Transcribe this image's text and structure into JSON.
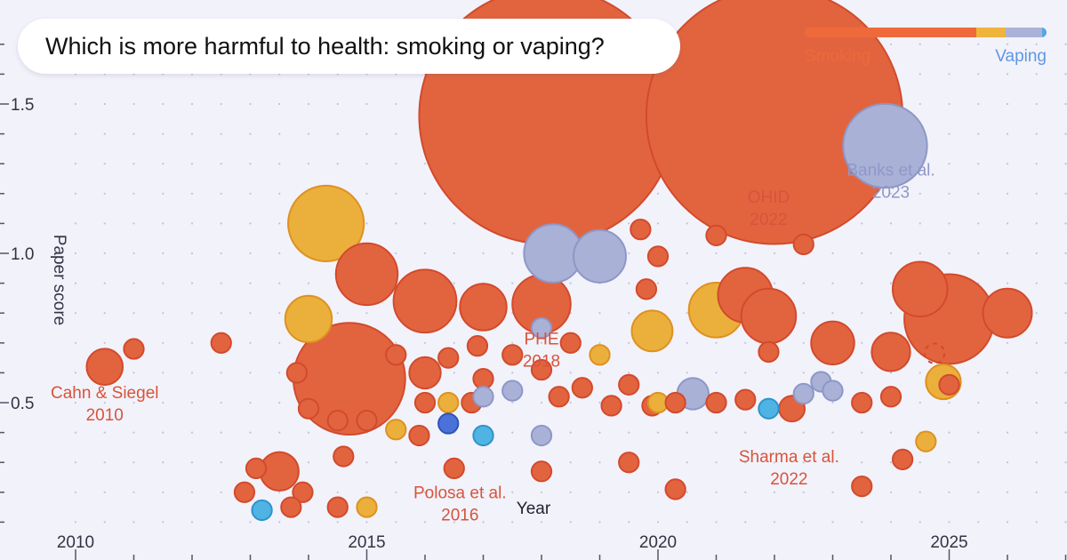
{
  "header": {
    "question": "Which is more harmful to health: smoking or vaping?"
  },
  "legend": {
    "left_label": "Smoking",
    "right_label": "Vaping",
    "segments": [
      {
        "color": "#ef6a3a",
        "fraction": 0.71
      },
      {
        "color": "#efb43c",
        "fraction": 0.12
      },
      {
        "color": "#aab2d8",
        "fraction": 0.15
      },
      {
        "color": "#52a8e6",
        "fraction": 0.02
      }
    ]
  },
  "colors": {
    "smoking": "#e2643f",
    "smoking_stroke": "#d24a2c",
    "mixed": "#ebb03b",
    "mixed_stroke": "#de9120",
    "neutral": "#a9b1d6",
    "neutral_stroke": "#8d97c8",
    "vaping_light": "#4fb3e3",
    "vaping_light_stroke": "#2e93cc",
    "vaping": "#4a72d9",
    "vaping_stroke": "#2f54b8",
    "background": "#f2f2fb"
  },
  "chart_data": {
    "type": "scatter",
    "title": "",
    "xlabel": "Year",
    "ylabel": "Paper score",
    "xlim": [
      2009.6,
      2027.8
    ],
    "ylim": [
      0.09,
      1.61
    ],
    "x_ticks": [
      {
        "value": 2010,
        "label": "2010"
      },
      {
        "value": 2015,
        "label": "2015"
      },
      {
        "value": 2020,
        "label": "2020"
      },
      {
        "value": 2025,
        "label": "2025"
      }
    ],
    "y_ticks": [
      {
        "value": 0.5,
        "label": "0.5"
      },
      {
        "value": 1.0,
        "label": "1.0"
      },
      {
        "value": 1.5,
        "label": "1.5"
      }
    ],
    "grid": "dotted",
    "annotations": [
      {
        "line1": "Cahn & Siegel",
        "line2": "2010",
        "x": 2010.5,
        "y": 0.515,
        "color": "smoking"
      },
      {
        "line1": "Polosa et al.",
        "line2": "2016",
        "x": 2016.6,
        "y": 0.18,
        "color": "smoking"
      },
      {
        "line1": "PHE",
        "line2": "2018",
        "x": 2018.0,
        "y": 0.695,
        "color": "smoking"
      },
      {
        "line1": "OHID",
        "line2": "2022",
        "x": 2021.9,
        "y": 1.17,
        "color": "smoking"
      },
      {
        "line1": "Banks et al.",
        "line2": "2023",
        "x": 2024.0,
        "y": 1.26,
        "color": "neutral"
      },
      {
        "line1": "Sharma et al.",
        "line2": "2022",
        "x": 2022.25,
        "y": 0.3,
        "color": "smoking"
      }
    ],
    "dashed_circle": {
      "x": 2024.75,
      "y": 0.665,
      "size": 0.17
    },
    "points": [
      {
        "x": 2018.1,
        "y": 1.46,
        "size": 2.2,
        "cat": "smoking"
      },
      {
        "x": 2022.0,
        "y": 1.46,
        "size": 2.2,
        "cat": "smoking"
      },
      {
        "x": 2023.9,
        "y": 1.36,
        "size": 0.72,
        "cat": "neutral"
      },
      {
        "x": 2014.3,
        "y": 1.1,
        "size": 0.65,
        "cat": "mixed"
      },
      {
        "x": 2015.0,
        "y": 0.93,
        "size": 0.53,
        "cat": "smoking"
      },
      {
        "x": 2016.0,
        "y": 0.84,
        "size": 0.54,
        "cat": "smoking"
      },
      {
        "x": 2017.0,
        "y": 0.82,
        "size": 0.4,
        "cat": "smoking"
      },
      {
        "x": 2018.0,
        "y": 0.83,
        "size": 0.5,
        "cat": "smoking"
      },
      {
        "x": 2018.2,
        "y": 1.0,
        "size": 0.5,
        "cat": "neutral"
      },
      {
        "x": 2019.0,
        "y": 0.99,
        "size": 0.45,
        "cat": "neutral"
      },
      {
        "x": 2014.0,
        "y": 0.78,
        "size": 0.4,
        "cat": "mixed"
      },
      {
        "x": 2014.7,
        "y": 0.58,
        "size": 0.96,
        "cat": "smoking"
      },
      {
        "x": 2010.5,
        "y": 0.62,
        "size": 0.31,
        "cat": "smoking"
      },
      {
        "x": 2011.0,
        "y": 0.68,
        "size": 0.17,
        "cat": "smoking"
      },
      {
        "x": 2012.5,
        "y": 0.7,
        "size": 0.17,
        "cat": "smoking"
      },
      {
        "x": 2013.8,
        "y": 0.6,
        "size": 0.17,
        "cat": "smoking"
      },
      {
        "x": 2014.0,
        "y": 0.48,
        "size": 0.17,
        "cat": "smoking"
      },
      {
        "x": 2014.5,
        "y": 0.44,
        "size": 0.17,
        "cat": "smoking"
      },
      {
        "x": 2015.0,
        "y": 0.44,
        "size": 0.17,
        "cat": "smoking"
      },
      {
        "x": 2014.6,
        "y": 0.32,
        "size": 0.17,
        "cat": "smoking"
      },
      {
        "x": 2013.1,
        "y": 0.28,
        "size": 0.17,
        "cat": "smoking"
      },
      {
        "x": 2013.5,
        "y": 0.27,
        "size": 0.33,
        "cat": "smoking"
      },
      {
        "x": 2012.9,
        "y": 0.2,
        "size": 0.17,
        "cat": "smoking"
      },
      {
        "x": 2013.9,
        "y": 0.2,
        "size": 0.17,
        "cat": "smoking"
      },
      {
        "x": 2013.2,
        "y": 0.14,
        "size": 0.17,
        "cat": "vaping_light"
      },
      {
        "x": 2013.7,
        "y": 0.15,
        "size": 0.17,
        "cat": "smoking"
      },
      {
        "x": 2014.5,
        "y": 0.15,
        "size": 0.17,
        "cat": "smoking"
      },
      {
        "x": 2015.0,
        "y": 0.15,
        "size": 0.17,
        "cat": "mixed"
      },
      {
        "x": 2015.5,
        "y": 0.41,
        "size": 0.17,
        "cat": "mixed"
      },
      {
        "x": 2015.5,
        "y": 0.66,
        "size": 0.17,
        "cat": "smoking"
      },
      {
        "x": 2016.0,
        "y": 0.6,
        "size": 0.27,
        "cat": "smoking"
      },
      {
        "x": 2016.0,
        "y": 0.5,
        "size": 0.17,
        "cat": "smoking"
      },
      {
        "x": 2015.9,
        "y": 0.39,
        "size": 0.17,
        "cat": "smoking"
      },
      {
        "x": 2016.4,
        "y": 0.65,
        "size": 0.17,
        "cat": "smoking"
      },
      {
        "x": 2016.4,
        "y": 0.5,
        "size": 0.17,
        "cat": "mixed"
      },
      {
        "x": 2016.4,
        "y": 0.43,
        "size": 0.17,
        "cat": "vaping"
      },
      {
        "x": 2016.5,
        "y": 0.28,
        "size": 0.17,
        "cat": "smoking"
      },
      {
        "x": 2016.8,
        "y": 0.5,
        "size": 0.17,
        "cat": "smoking"
      },
      {
        "x": 2017.0,
        "y": 0.58,
        "size": 0.17,
        "cat": "smoking"
      },
      {
        "x": 2016.9,
        "y": 0.69,
        "size": 0.17,
        "cat": "smoking"
      },
      {
        "x": 2017.0,
        "y": 0.52,
        "size": 0.17,
        "cat": "neutral"
      },
      {
        "x": 2017.0,
        "y": 0.39,
        "size": 0.17,
        "cat": "vaping_light"
      },
      {
        "x": 2017.5,
        "y": 0.54,
        "size": 0.17,
        "cat": "neutral"
      },
      {
        "x": 2017.5,
        "y": 0.66,
        "size": 0.17,
        "cat": "smoking"
      },
      {
        "x": 2018.0,
        "y": 0.61,
        "size": 0.17,
        "cat": "smoking"
      },
      {
        "x": 2018.0,
        "y": 0.75,
        "size": 0.17,
        "cat": "neutral"
      },
      {
        "x": 2018.3,
        "y": 0.52,
        "size": 0.17,
        "cat": "smoking"
      },
      {
        "x": 2018.5,
        "y": 0.7,
        "size": 0.17,
        "cat": "smoking"
      },
      {
        "x": 2018.7,
        "y": 0.55,
        "size": 0.17,
        "cat": "smoking"
      },
      {
        "x": 2019.0,
        "y": 0.66,
        "size": 0.17,
        "cat": "mixed"
      },
      {
        "x": 2018.0,
        "y": 0.39,
        "size": 0.17,
        "cat": "neutral"
      },
      {
        "x": 2018.0,
        "y": 0.27,
        "size": 0.17,
        "cat": "smoking"
      },
      {
        "x": 2019.2,
        "y": 0.49,
        "size": 0.17,
        "cat": "smoking"
      },
      {
        "x": 2019.5,
        "y": 0.56,
        "size": 0.17,
        "cat": "smoking"
      },
      {
        "x": 2019.5,
        "y": 0.3,
        "size": 0.17,
        "cat": "smoking"
      },
      {
        "x": 2019.7,
        "y": 1.08,
        "size": 0.17,
        "cat": "smoking"
      },
      {
        "x": 2020.0,
        "y": 0.99,
        "size": 0.17,
        "cat": "smoking"
      },
      {
        "x": 2019.8,
        "y": 0.88,
        "size": 0.17,
        "cat": "smoking"
      },
      {
        "x": 2019.9,
        "y": 0.74,
        "size": 0.35,
        "cat": "mixed"
      },
      {
        "x": 2019.9,
        "y": 0.49,
        "size": 0.17,
        "cat": "smoking"
      },
      {
        "x": 2020.0,
        "y": 0.5,
        "size": 0.17,
        "cat": "mixed"
      },
      {
        "x": 2020.3,
        "y": 0.5,
        "size": 0.17,
        "cat": "smoking"
      },
      {
        "x": 2020.3,
        "y": 0.21,
        "size": 0.17,
        "cat": "smoking"
      },
      {
        "x": 2020.6,
        "y": 0.53,
        "size": 0.27,
        "cat": "neutral"
      },
      {
        "x": 2021.0,
        "y": 1.06,
        "size": 0.17,
        "cat": "smoking"
      },
      {
        "x": 2021.0,
        "y": 0.81,
        "size": 0.47,
        "cat": "mixed"
      },
      {
        "x": 2021.5,
        "y": 0.86,
        "size": 0.47,
        "cat": "smoking"
      },
      {
        "x": 2021.9,
        "y": 0.79,
        "size": 0.47,
        "cat": "smoking"
      },
      {
        "x": 2021.9,
        "y": 0.67,
        "size": 0.17,
        "cat": "smoking"
      },
      {
        "x": 2021.0,
        "y": 0.5,
        "size": 0.17,
        "cat": "smoking"
      },
      {
        "x": 2021.5,
        "y": 0.51,
        "size": 0.17,
        "cat": "smoking"
      },
      {
        "x": 2021.9,
        "y": 0.48,
        "size": 0.17,
        "cat": "vaping_light"
      },
      {
        "x": 2022.3,
        "y": 0.48,
        "size": 0.22,
        "cat": "smoking"
      },
      {
        "x": 2022.5,
        "y": 1.03,
        "size": 0.17,
        "cat": "smoking"
      },
      {
        "x": 2022.5,
        "y": 0.53,
        "size": 0.17,
        "cat": "neutral"
      },
      {
        "x": 2022.8,
        "y": 0.57,
        "size": 0.17,
        "cat": "neutral"
      },
      {
        "x": 2023.0,
        "y": 0.54,
        "size": 0.17,
        "cat": "neutral"
      },
      {
        "x": 2023.0,
        "y": 0.7,
        "size": 0.37,
        "cat": "smoking"
      },
      {
        "x": 2023.5,
        "y": 0.5,
        "size": 0.17,
        "cat": "smoking"
      },
      {
        "x": 2023.5,
        "y": 0.22,
        "size": 0.17,
        "cat": "smoking"
      },
      {
        "x": 2024.0,
        "y": 0.52,
        "size": 0.17,
        "cat": "smoking"
      },
      {
        "x": 2024.0,
        "y": 0.67,
        "size": 0.33,
        "cat": "smoking"
      },
      {
        "x": 2024.5,
        "y": 0.88,
        "size": 0.47,
        "cat": "smoking"
      },
      {
        "x": 2025.0,
        "y": 0.78,
        "size": 0.77,
        "cat": "smoking"
      },
      {
        "x": 2026.0,
        "y": 0.8,
        "size": 0.42,
        "cat": "smoking"
      },
      {
        "x": 2024.9,
        "y": 0.57,
        "size": 0.3,
        "cat": "mixed"
      },
      {
        "x": 2025.0,
        "y": 0.56,
        "size": 0.17,
        "cat": "smoking"
      },
      {
        "x": 2024.6,
        "y": 0.37,
        "size": 0.17,
        "cat": "mixed"
      },
      {
        "x": 2024.2,
        "y": 0.31,
        "size": 0.17,
        "cat": "smoking"
      }
    ]
  }
}
